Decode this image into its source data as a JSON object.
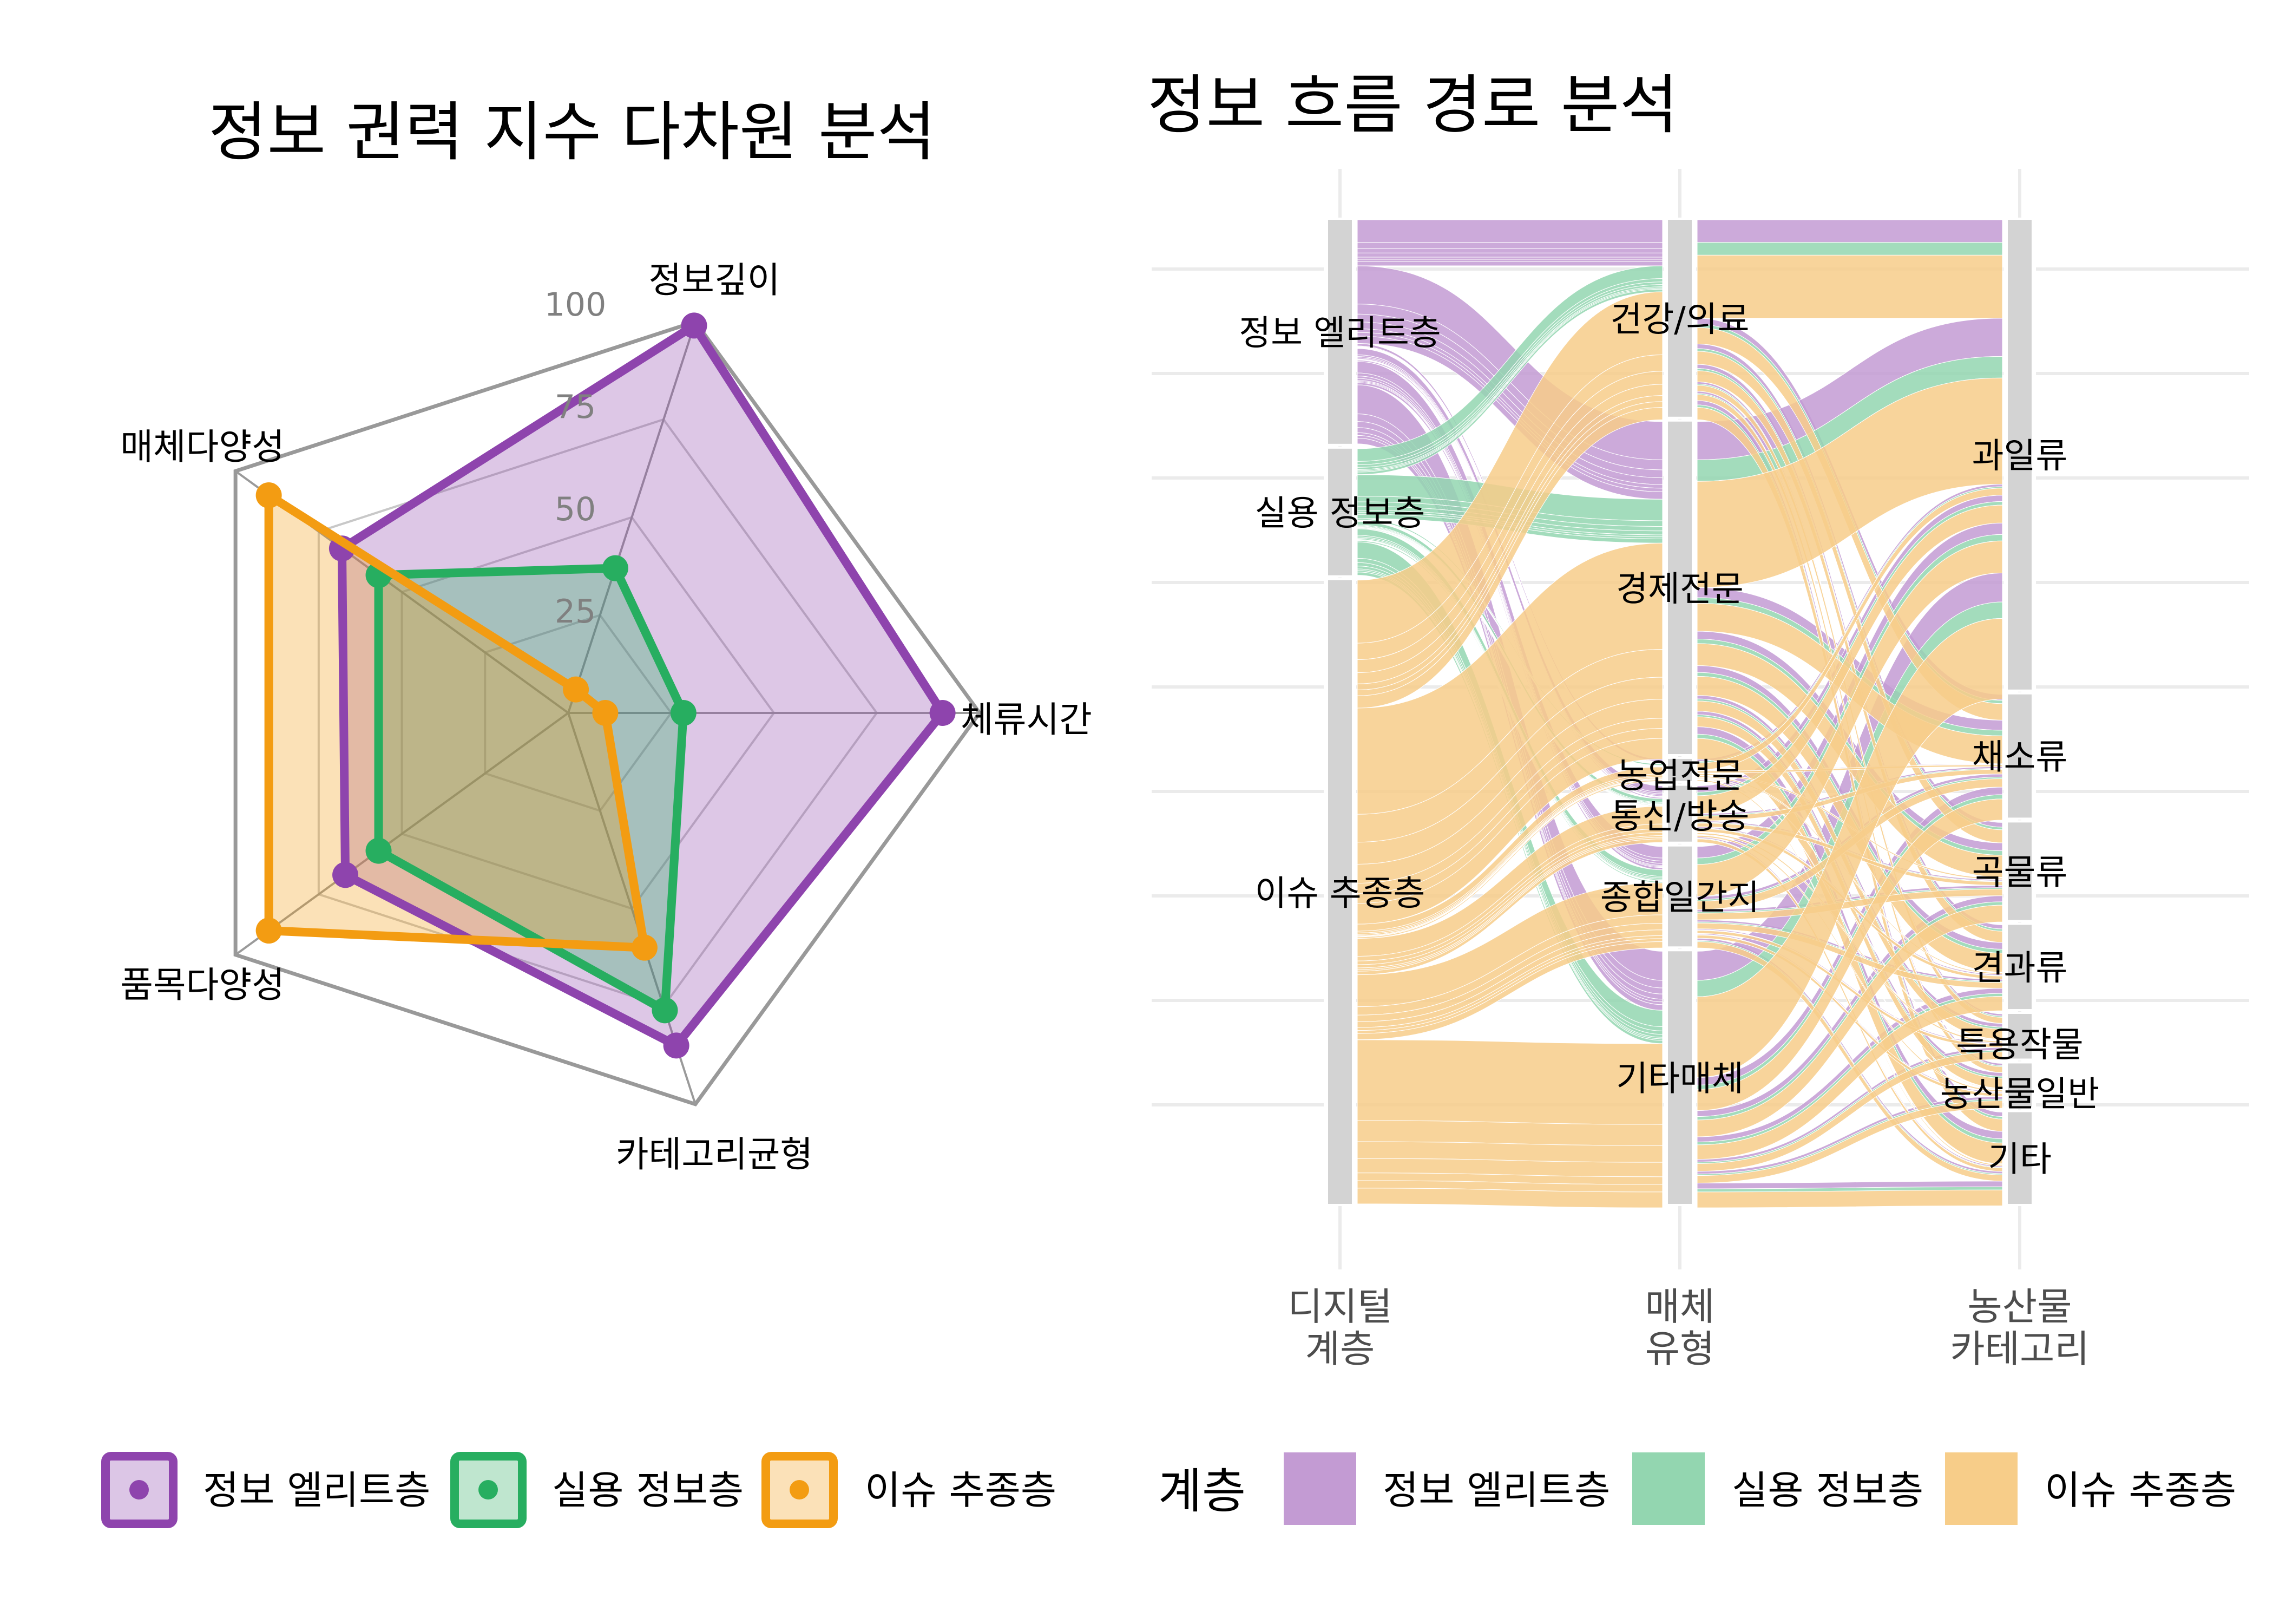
{
  "chart_data": [
    {
      "type": "radar",
      "title": "정보 권력 지수 다차원 분석",
      "axes": [
        "정보깊이",
        "체류시간",
        "카테고리균형",
        "품목다양성",
        "매체다양성"
      ],
      "rlim": [
        0,
        100
      ],
      "rticks": [
        25,
        50,
        75,
        100
      ],
      "grid": true,
      "legend_position": "bottom",
      "series": [
        {
          "name": "정보 엘리트층",
          "color": "#8E44AD",
          "values": [
            99,
            91,
            85,
            67,
            68
          ]
        },
        {
          "name": "실용 정보층",
          "color": "#27AE60",
          "values": [
            37,
            28,
            76,
            57,
            57
          ]
        },
        {
          "name": "이슈 추종층",
          "color": "#F39C12",
          "values": [
            6,
            9,
            60,
            90,
            90
          ]
        }
      ]
    },
    {
      "type": "alluvial",
      "title": "정보 흐름 경로 분석",
      "axes": [
        {
          "label": [
            "디지털",
            "계층"
          ],
          "strata": [
            "정보 엘리트층",
            "실용 정보층",
            "이슈 추종층"
          ]
        },
        {
          "label": [
            "매체",
            "유형"
          ],
          "strata": [
            "건강/의료",
            "경제전문",
            "농업전문",
            "통신/방송",
            "종합일간지",
            "기타매체"
          ]
        },
        {
          "label": [
            "농산물",
            "카테고리"
          ],
          "strata": [
            "과일류",
            "채소류",
            "곡물류",
            "견과류",
            "특용작물",
            "농산물일반",
            "기타"
          ]
        }
      ],
      "value_unit": "percent of users (approx.)",
      "fill_by": "계층",
      "legend_title": "계층",
      "legend_position": "bottom",
      "fill_colors": {
        "정보 엘리트층": "#C39BD3",
        "실용 정보층": "#93D6B0",
        "이슈 추종층": "#F7CD89"
      },
      "flows_note": "flows[layer][media][category] in percent",
      "flows": [
        [
          [
            2.32,
            0.61,
            0.48,
            0.42,
            0.22,
            0.22,
            0.45
          ],
          [
            3.92,
            1.03,
            0.81,
            0.7,
            0.37,
            0.37,
            0.76
          ],
          [
            0.26,
            0.07,
            0.05,
            0.05,
            0.02,
            0.02,
            0.05
          ],
          [
            0.65,
            0.17,
            0.14,
            0.12,
            0.06,
            0.06,
            0.13
          ],
          [
            1.18,
            0.31,
            0.24,
            0.21,
            0.11,
            0.11,
            0.23
          ],
          [
            2.98,
            0.78,
            0.62,
            0.53,
            0.28,
            0.28,
            0.58
          ]
        ],
        [
          [
            1.31,
            0.34,
            0.27,
            0.23,
            0.13,
            0.12,
            0.26
          ],
          [
            2.21,
            0.58,
            0.46,
            0.4,
            0.21,
            0.21,
            0.43
          ],
          [
            0.15,
            0.04,
            0.03,
            0.03,
            0.01,
            0.01,
            0.03
          ],
          [
            0.37,
            0.1,
            0.08,
            0.07,
            0.04,
            0.03,
            0.07
          ],
          [
            0.66,
            0.17,
            0.14,
            0.12,
            0.06,
            0.06,
            0.13
          ],
          [
            1.68,
            0.44,
            0.35,
            0.3,
            0.16,
            0.16,
            0.33
          ]
        ],
        [
          [
            6.46,
            1.69,
            1.34,
            1.15,
            0.62,
            0.6,
            1.26
          ],
          [
            10.89,
            2.86,
            2.26,
            1.95,
            1.04,
            1.02,
            2.13
          ],
          [
            0.72,
            0.19,
            0.15,
            0.13,
            0.07,
            0.07,
            0.14
          ],
          [
            1.83,
            0.48,
            0.38,
            0.33,
            0.17,
            0.17,
            0.36
          ],
          [
            3.28,
            0.86,
            0.68,
            0.59,
            0.31,
            0.31,
            0.64
          ],
          [
            8.28,
            2.17,
            1.72,
            1.48,
            0.79,
            0.77,
            1.62
          ]
        ]
      ]
    }
  ],
  "radar_legend": {
    "items": [
      {
        "label": "정보 엘리트층",
        "color": "#8E44AD",
        "fill": "#DCC6E6"
      },
      {
        "label": "실용 정보층",
        "color": "#27AE60",
        "fill": "#BFE6CF"
      },
      {
        "label": "이슈 추종층",
        "color": "#F39C12",
        "fill": "#FBE1B8"
      }
    ]
  },
  "alluvial_legend": {
    "title": "계층",
    "items": [
      {
        "label": "정보 엘리트층",
        "color": "#C39BD3"
      },
      {
        "label": "실용 정보층",
        "color": "#93D6B0"
      },
      {
        "label": "이슈 추종층",
        "color": "#F7CD89"
      }
    ]
  }
}
